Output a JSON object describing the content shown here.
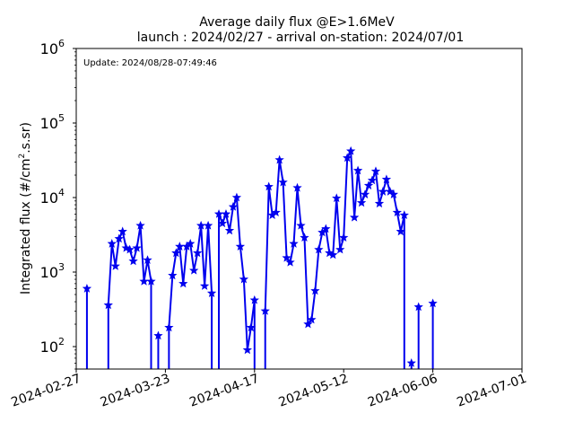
{
  "chart_data": {
    "type": "line",
    "title": "Average daily flux @E>1.6MeV",
    "subtitle": "launch : 2024/02/27 - arrival on-station: 2024/07/01",
    "ylabel_main": "Integrated flux (#/cm",
    "ylabel_sup": "2",
    "ylabel_tail": ".s.sr)",
    "xlabel": "",
    "update_text": "Update: 2024/08/28-07:49:46",
    "xlim": [
      "2024-02-27",
      "2024-07-01"
    ],
    "ylim": [
      50,
      1000000
    ],
    "yscale": "log",
    "x_ticks": [
      "2024-02-27",
      "2024-03-23",
      "2024-04-17",
      "2024-05-12",
      "2024-06-06",
      "2024-07-01"
    ],
    "y_ticks": [
      {
        "base": "10",
        "exp": "2",
        "value": 100
      },
      {
        "base": "10",
        "exp": "3",
        "value": 1000
      },
      {
        "base": "10",
        "exp": "4",
        "value": 10000
      },
      {
        "base": "10",
        "exp": "5",
        "value": 100000
      },
      {
        "base": "10",
        "exp": "6",
        "value": 1000000
      }
    ],
    "grid": false,
    "series": [
      {
        "color": "#0000ee",
        "marker": "star",
        "segments": [
          [
            {
              "x": "2024-03-01",
              "y": 600
            }
          ],
          [
            {
              "x": "2024-03-07",
              "y": 360
            },
            {
              "x": "2024-03-08",
              "y": 2400
            },
            {
              "x": "2024-03-09",
              "y": 1200
            },
            {
              "x": "2024-03-10",
              "y": 2800
            },
            {
              "x": "2024-03-11",
              "y": 3500
            },
            {
              "x": "2024-03-12",
              "y": 2100
            },
            {
              "x": "2024-03-13",
              "y": 2000
            },
            {
              "x": "2024-03-14",
              "y": 1400
            },
            {
              "x": "2024-03-15",
              "y": 2100
            },
            {
              "x": "2024-03-16",
              "y": 4200
            },
            {
              "x": "2024-03-17",
              "y": 750
            },
            {
              "x": "2024-03-18",
              "y": 1450
            },
            {
              "x": "2024-03-19",
              "y": 750
            }
          ],
          [
            {
              "x": "2024-03-21",
              "y": 140
            }
          ],
          [
            {
              "x": "2024-03-24",
              "y": 180
            },
            {
              "x": "2024-03-25",
              "y": 900
            },
            {
              "x": "2024-03-26",
              "y": 1800
            },
            {
              "x": "2024-03-27",
              "y": 2200
            },
            {
              "x": "2024-03-28",
              "y": 700
            },
            {
              "x": "2024-03-29",
              "y": 2200
            },
            {
              "x": "2024-03-30",
              "y": 2400
            },
            {
              "x": "2024-03-31",
              "y": 1050
            },
            {
              "x": "2024-04-01",
              "y": 1800
            },
            {
              "x": "2024-04-02",
              "y": 4200
            },
            {
              "x": "2024-04-03",
              "y": 650
            },
            {
              "x": "2024-04-04",
              "y": 4200
            },
            {
              "x": "2024-04-05",
              "y": 520
            }
          ],
          [
            {
              "x": "2024-04-07",
              "y": 6000
            },
            {
              "x": "2024-04-08",
              "y": 4500
            },
            {
              "x": "2024-04-09",
              "y": 6000
            },
            {
              "x": "2024-04-10",
              "y": 3600
            },
            {
              "x": "2024-04-11",
              "y": 7500
            },
            {
              "x": "2024-04-12",
              "y": 10000
            },
            {
              "x": "2024-04-13",
              "y": 2200
            },
            {
              "x": "2024-04-14",
              "y": 800
            },
            {
              "x": "2024-04-15",
              "y": 90
            },
            {
              "x": "2024-04-16",
              "y": 180
            },
            {
              "x": "2024-04-17",
              "y": 420
            }
          ],
          [
            {
              "x": "2024-04-20",
              "y": 300
            },
            {
              "x": "2024-04-21",
              "y": 14000
            },
            {
              "x": "2024-04-22",
              "y": 5800
            },
            {
              "x": "2024-04-23",
              "y": 6300
            },
            {
              "x": "2024-04-24",
              "y": 32000
            },
            {
              "x": "2024-04-25",
              "y": 16000
            },
            {
              "x": "2024-04-26",
              "y": 1550
            },
            {
              "x": "2024-04-27",
              "y": 1350
            },
            {
              "x": "2024-04-28",
              "y": 2400
            },
            {
              "x": "2024-04-29",
              "y": 13500
            },
            {
              "x": "2024-04-30",
              "y": 4200
            },
            {
              "x": "2024-05-01",
              "y": 2900
            },
            {
              "x": "2024-05-02",
              "y": 200
            },
            {
              "x": "2024-05-03",
              "y": 230
            },
            {
              "x": "2024-05-04",
              "y": 560
            },
            {
              "x": "2024-05-05",
              "y": 2000
            },
            {
              "x": "2024-05-06",
              "y": 3400
            },
            {
              "x": "2024-05-07",
              "y": 3800
            },
            {
              "x": "2024-05-08",
              "y": 1800
            },
            {
              "x": "2024-05-09",
              "y": 1700
            },
            {
              "x": "2024-05-10",
              "y": 9800
            },
            {
              "x": "2024-05-11",
              "y": 2000
            },
            {
              "x": "2024-05-12",
              "y": 2900
            },
            {
              "x": "2024-05-13",
              "y": 34000
            },
            {
              "x": "2024-05-14",
              "y": 42000
            },
            {
              "x": "2024-05-15",
              "y": 5400
            },
            {
              "x": "2024-05-16",
              "y": 23000
            },
            {
              "x": "2024-05-17",
              "y": 8500
            },
            {
              "x": "2024-05-18",
              "y": 11000
            },
            {
              "x": "2024-05-19",
              "y": 14500
            },
            {
              "x": "2024-05-20",
              "y": 17000
            },
            {
              "x": "2024-05-21",
              "y": 22500
            },
            {
              "x": "2024-05-22",
              "y": 8300
            },
            {
              "x": "2024-05-23",
              "y": 12000
            },
            {
              "x": "2024-05-24",
              "y": 17500
            },
            {
              "x": "2024-05-25",
              "y": 12000
            },
            {
              "x": "2024-05-26",
              "y": 11000
            },
            {
              "x": "2024-05-27",
              "y": 6300
            },
            {
              "x": "2024-05-28",
              "y": 3500
            },
            {
              "x": "2024-05-29",
              "y": 5800
            }
          ],
          [
            {
              "x": "2024-05-31",
              "y": 60
            }
          ],
          [
            {
              "x": "2024-06-02",
              "y": 340
            }
          ],
          [
            {
              "x": "2024-06-06",
              "y": 380
            }
          ]
        ]
      }
    ]
  }
}
